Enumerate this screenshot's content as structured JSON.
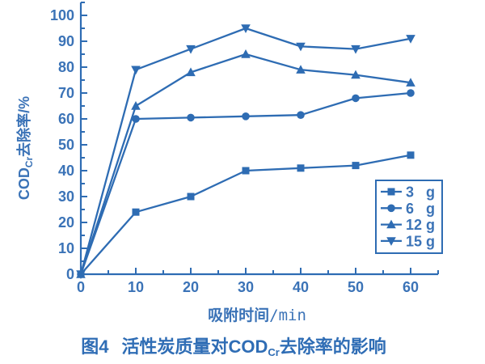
{
  "figure": {
    "background": "#ffffff",
    "accent_color": "#2e6cb3",
    "text_color": "#3b73b7",
    "caption": {
      "fig_label": "图4",
      "title_pre": "活性炭质量对COD",
      "title_sub": "Cr",
      "title_post": "去除率的影响"
    }
  },
  "chart_data": {
    "type": "line",
    "title": "图4 活性炭质量对COD_Cr去除率的影响",
    "xlabel": "吸附时间/min",
    "xlabel_parts": {
      "pre": "吸附时间",
      "post": "/min"
    },
    "ylabel": "COD_Cr去除率/%",
    "ylabel_parts": {
      "pre": "COD",
      "sub": "Cr",
      "post": "去除率/%"
    },
    "x": [
      0,
      10,
      20,
      30,
      40,
      50,
      60
    ],
    "series": [
      {
        "name": "3 g",
        "qty": "3",
        "unit": "g",
        "marker": "square",
        "values": [
          0,
          24,
          30,
          40,
          41,
          42,
          46
        ]
      },
      {
        "name": "6 g",
        "qty": "6",
        "unit": "g",
        "marker": "circle",
        "values": [
          0,
          60,
          60.5,
          61,
          61.5,
          68,
          70
        ]
      },
      {
        "name": "12 g",
        "qty": "12",
        "unit": "g",
        "marker": "triangle-up",
        "values": [
          0,
          65,
          78,
          85,
          79,
          77,
          74
        ]
      },
      {
        "name": "15 g",
        "qty": "15",
        "unit": "g",
        "marker": "triangle-down",
        "values": [
          0,
          79,
          87,
          95,
          88,
          87,
          91
        ]
      }
    ],
    "xlim": [
      0,
      65
    ],
    "ylim": [
      0,
      105
    ],
    "x_major_ticks": [
      0,
      10,
      20,
      30,
      40,
      50,
      60
    ],
    "y_major_ticks": [
      0,
      10,
      20,
      30,
      40,
      50,
      60,
      70,
      80,
      90,
      100
    ],
    "minor_tick_step": 5,
    "grid": false,
    "legend_position": "inside-right-bottom",
    "legend_labels": [
      "3 g",
      "6 g",
      "12 g",
      "15 g"
    ]
  }
}
